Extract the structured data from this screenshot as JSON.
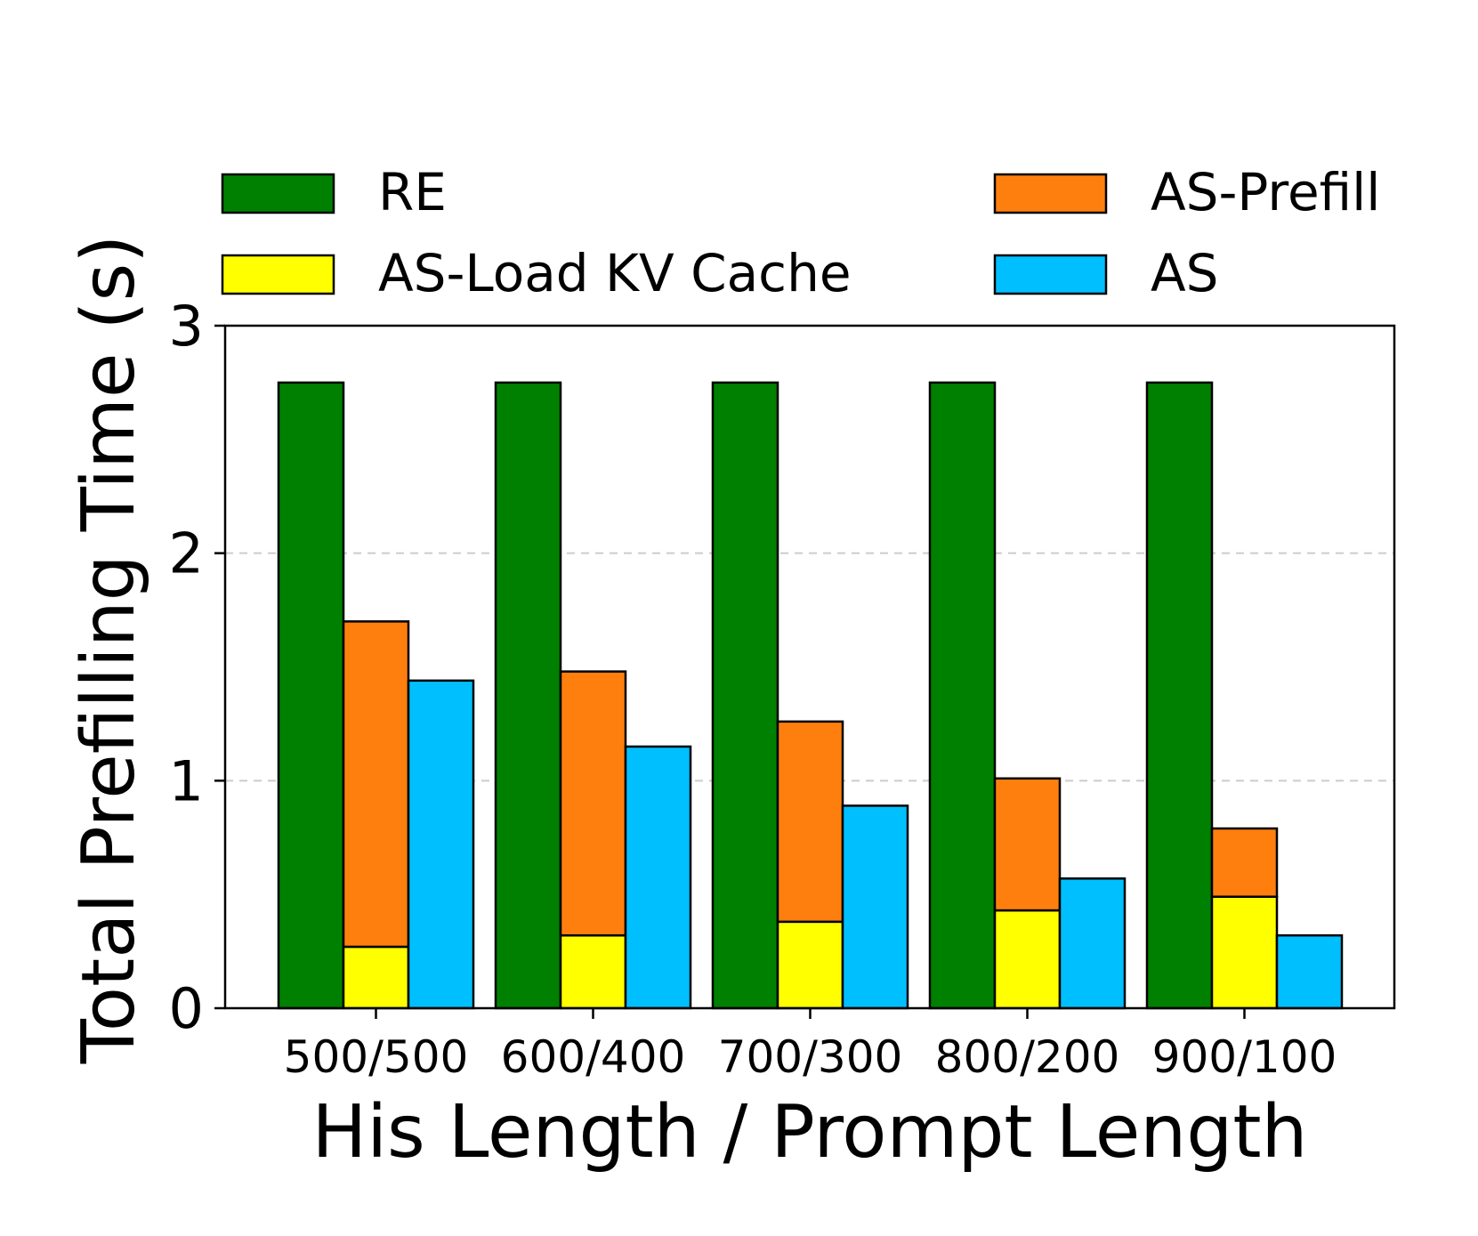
{
  "chart_data": {
    "type": "bar",
    "stacked_series": "AS-Load KV Cache + AS-Prefill",
    "title": "",
    "xlabel": "His Length / Prompt Length",
    "ylabel": "Total Prefilling Time (s)",
    "categories": [
      "500/500",
      "600/400",
      "700/300",
      "800/200",
      "900/100"
    ],
    "ylim": [
      0,
      3
    ],
    "yticks": [
      0,
      1,
      2,
      3
    ],
    "grid": "horizontal dashed at 1 and 2",
    "legend_position": "top",
    "series": [
      {
        "name": "RE",
        "color": "#008000",
        "values": [
          2.75,
          2.75,
          2.75,
          2.75,
          2.75
        ]
      },
      {
        "name": "AS-Load KV Cache",
        "color": "#ffff00",
        "values": [
          0.27,
          0.32,
          0.38,
          0.43,
          0.49
        ],
        "stack": "AS-breakdown"
      },
      {
        "name": "AS-Prefill",
        "color": "#ff7f0e",
        "values": [
          1.43,
          1.16,
          0.88,
          0.58,
          0.3
        ],
        "stack": "AS-breakdown"
      },
      {
        "name": "AS",
        "color": "#00bfff",
        "values": [
          1.44,
          1.15,
          0.89,
          0.57,
          0.32
        ]
      }
    ],
    "legend": [
      {
        "label": "RE",
        "color": "#008000"
      },
      {
        "label": "AS-Prefill",
        "color": "#ff7f0e"
      },
      {
        "label": "AS-Load KV Cache",
        "color": "#ffff00"
      },
      {
        "label": "AS",
        "color": "#00bfff"
      }
    ]
  }
}
